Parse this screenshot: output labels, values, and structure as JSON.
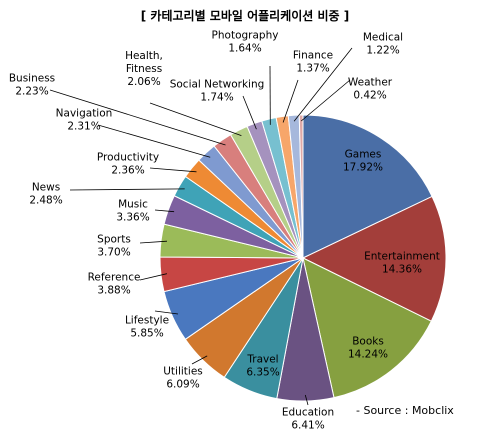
{
  "chart_data": {
    "type": "pie",
    "title": "[ 카테고리별 모바일 어플리케이션 비중 ]",
    "source": "- Source : Mobclix",
    "slices": [
      {
        "name": "Games",
        "value": 17.92,
        "label": "17.92%",
        "color": "#4a6ea6"
      },
      {
        "name": "Entertainment",
        "value": 14.36,
        "label": "14.36%",
        "color": "#a33e3a"
      },
      {
        "name": "Books",
        "value": 14.24,
        "label": "14.24%",
        "color": "#86a040"
      },
      {
        "name": "Education",
        "value": 6.41,
        "label": "6.41%",
        "color": "#6a5282"
      },
      {
        "name": "Travel",
        "value": 6.35,
        "label": "6.35%",
        "color": "#3a8f9f"
      },
      {
        "name": "Utilities",
        "value": 6.09,
        "label": "6.09%",
        "color": "#d1782e"
      },
      {
        "name": "Lifestyle",
        "value": 5.85,
        "label": "5.85%",
        "color": "#4a78bf"
      },
      {
        "name": "Reference",
        "value": 3.88,
        "label": "3.88%",
        "color": "#c74644"
      },
      {
        "name": "Sports",
        "value": 3.7,
        "label": "3.70%",
        "color": "#9bbb59"
      },
      {
        "name": "Music",
        "value": 3.36,
        "label": "3.36%",
        "color": "#7d60a0"
      },
      {
        "name": "News",
        "value": 2.48,
        "label": "2.48%",
        "color": "#3fa3b7"
      },
      {
        "name": "Productivity",
        "value": 2.36,
        "label": "2.36%",
        "color": "#ee8a34"
      },
      {
        "name": "Navigation",
        "value": 2.31,
        "label": "2.31%",
        "color": "#7f9ad0"
      },
      {
        "name": "Business",
        "value": 2.23,
        "label": "2.23%",
        "color": "#d87f7d"
      },
      {
        "name": "Health, Fitness",
        "value": 2.06,
        "label": "2.06%",
        "color": "#b5cf88"
      },
      {
        "name": "Social Networking",
        "value": 1.74,
        "label": "1.74%",
        "color": "#a592be"
      },
      {
        "name": "Photography",
        "value": 1.64,
        "label": "1.64%",
        "color": "#77c0d0"
      },
      {
        "name": "Finance",
        "value": 1.37,
        "label": "1.37%",
        "color": "#f7a66a"
      },
      {
        "name": "Medical",
        "value": 1.22,
        "label": "1.22%",
        "color": "#a6b8dc"
      },
      {
        "name": "Weather",
        "value": 0.42,
        "label": "0.42%",
        "color": "#e0a9a7"
      }
    ]
  }
}
